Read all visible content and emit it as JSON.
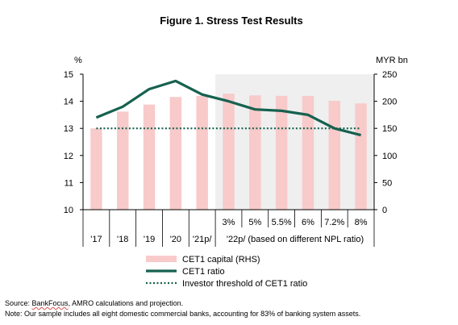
{
  "chart_data": {
    "type": "bar",
    "title": "Figure 1. Stress Test Results",
    "left_axis": {
      "unit": "%",
      "range": [
        10,
        15
      ],
      "ticks": [
        10,
        11,
        12,
        13,
        14,
        15
      ]
    },
    "right_axis": {
      "unit": "MYR bn",
      "range": [
        0,
        250
      ],
      "ticks": [
        0,
        50,
        100,
        150,
        200,
        250
      ]
    },
    "categories": [
      "'17",
      "'18",
      "'19",
      "'20",
      "'21p/",
      "3%",
      "5%",
      "5.5%",
      "6%",
      "7.2%",
      "8%"
    ],
    "group_label": "'22p/ (based on different NPL ratio)",
    "shaded_region": {
      "from": "3%",
      "to": "8%",
      "color": "#efefef"
    },
    "series": [
      {
        "name": "CET1 capital (RHS)",
        "type": "bar",
        "axis": "right",
        "color": "#f8caca",
        "values": [
          150,
          181,
          194,
          208,
          210,
          214,
          211,
          210,
          210,
          201,
          196
        ]
      },
      {
        "name": "CET1 ratio",
        "type": "line",
        "axis": "left",
        "color": "#16614f",
        "values": [
          13.4,
          13.8,
          14.45,
          14.75,
          14.25,
          14.0,
          13.7,
          13.65,
          13.5,
          13.0,
          12.75
        ]
      },
      {
        "name": "Investor threshold of CET1 ratio",
        "type": "dotted-line",
        "axis": "left",
        "color": "#16614f",
        "values": [
          13.0,
          13.0,
          13.0,
          13.0,
          13.0,
          13.0,
          13.0,
          13.0,
          13.0,
          13.0,
          13.0
        ]
      }
    ],
    "legend_position": "bottom"
  },
  "footnotes": {
    "source_prefix": "Source: ",
    "source_entity": "BankFocus",
    "source_rest": ", AMRO calculations and projection.",
    "note": "Note: Our sample includes all eight domestic commercial banks, accounting for 83% of banking system assets."
  }
}
